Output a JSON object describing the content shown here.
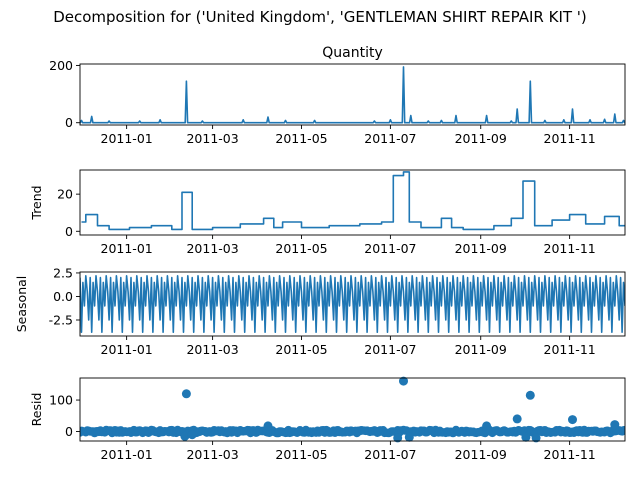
{
  "chart_data": {
    "suptitle": "Decomposition for ('United Kingdom', 'GENTLEMAN SHIRT REPAIR KIT ')",
    "x_start": "2011-12-01",
    "x_end": "2012-12-09",
    "x_ticks": [
      {
        "date": "2011-01-01",
        "label": "2011-01"
      },
      {
        "date": "2011-03-01",
        "label": "2011-03"
      },
      {
        "date": "2011-05-01",
        "label": "2011-05"
      },
      {
        "date": "2011-07-01",
        "label": "2011-07"
      },
      {
        "date": "2011-09-01",
        "label": "2011-09"
      },
      {
        "date": "2011-11-01",
        "label": "2011-11"
      }
    ],
    "panels": [
      {
        "key": "observed",
        "type": "line",
        "title": "Quantity",
        "ylabel": "",
        "ylim": [
          -8,
          205
        ],
        "yticks": [
          0,
          200
        ],
        "spikes": [
          {
            "date": "2010-12-01",
            "value": 8
          },
          {
            "date": "2010-12-08",
            "value": 22
          },
          {
            "date": "2010-12-20",
            "value": 6
          },
          {
            "date": "2011-01-10",
            "value": 6
          },
          {
            "date": "2011-01-24",
            "value": 10
          },
          {
            "date": "2011-02-11",
            "value": 145
          },
          {
            "date": "2011-02-22",
            "value": 6
          },
          {
            "date": "2011-03-22",
            "value": 10
          },
          {
            "date": "2011-04-08",
            "value": 20
          },
          {
            "date": "2011-04-20",
            "value": 8
          },
          {
            "date": "2011-05-10",
            "value": 8
          },
          {
            "date": "2011-06-20",
            "value": 6
          },
          {
            "date": "2011-07-01",
            "value": 10
          },
          {
            "date": "2011-07-10",
            "value": 195
          },
          {
            "date": "2011-07-15",
            "value": 25
          },
          {
            "date": "2011-07-27",
            "value": 6
          },
          {
            "date": "2011-08-05",
            "value": 8
          },
          {
            "date": "2011-08-15",
            "value": 25
          },
          {
            "date": "2011-09-05",
            "value": 25
          },
          {
            "date": "2011-09-22",
            "value": 6
          },
          {
            "date": "2011-09-26",
            "value": 48
          },
          {
            "date": "2011-10-05",
            "value": 145
          },
          {
            "date": "2011-10-15",
            "value": 8
          },
          {
            "date": "2011-10-28",
            "value": 10
          },
          {
            "date": "2011-11-03",
            "value": 48
          },
          {
            "date": "2011-11-15",
            "value": 10
          },
          {
            "date": "2011-11-25",
            "value": 12
          },
          {
            "date": "2011-12-02",
            "value": 30
          },
          {
            "date": "2011-12-08",
            "value": 8
          }
        ]
      },
      {
        "key": "trend",
        "type": "line",
        "title": "",
        "ylabel": "Trend",
        "ylim": [
          -2,
          33
        ],
        "yticks": [
          0,
          20
        ],
        "steps": [
          {
            "start": "2010-12-01",
            "end": "2010-12-04",
            "value": 5
          },
          {
            "start": "2010-12-04",
            "end": "2010-12-12",
            "value": 9
          },
          {
            "start": "2010-12-12",
            "end": "2010-12-20",
            "value": 3
          },
          {
            "start": "2010-12-20",
            "end": "2011-01-03",
            "value": 1
          },
          {
            "start": "2011-01-03",
            "end": "2011-01-18",
            "value": 2
          },
          {
            "start": "2011-01-18",
            "end": "2011-02-01",
            "value": 3
          },
          {
            "start": "2011-02-01",
            "end": "2011-02-08",
            "value": 1
          },
          {
            "start": "2011-02-08",
            "end": "2011-02-15",
            "value": 21
          },
          {
            "start": "2011-02-15",
            "end": "2011-03-01",
            "value": 1
          },
          {
            "start": "2011-03-01",
            "end": "2011-03-20",
            "value": 2
          },
          {
            "start": "2011-03-20",
            "end": "2011-04-05",
            "value": 4
          },
          {
            "start": "2011-04-05",
            "end": "2011-04-12",
            "value": 7
          },
          {
            "start": "2011-04-12",
            "end": "2011-04-18",
            "value": 2
          },
          {
            "start": "2011-04-18",
            "end": "2011-05-01",
            "value": 5
          },
          {
            "start": "2011-05-01",
            "end": "2011-05-20",
            "value": 2
          },
          {
            "start": "2011-05-20",
            "end": "2011-06-10",
            "value": 3
          },
          {
            "start": "2011-06-10",
            "end": "2011-06-25",
            "value": 4
          },
          {
            "start": "2011-06-25",
            "end": "2011-07-03",
            "value": 5
          },
          {
            "start": "2011-07-03",
            "end": "2011-07-10",
            "value": 30
          },
          {
            "start": "2011-07-10",
            "end": "2011-07-14",
            "value": 32
          },
          {
            "start": "2011-07-14",
            "end": "2011-07-22",
            "value": 5
          },
          {
            "start": "2011-07-22",
            "end": "2011-08-05",
            "value": 2
          },
          {
            "start": "2011-08-05",
            "end": "2011-08-12",
            "value": 7
          },
          {
            "start": "2011-08-12",
            "end": "2011-08-20",
            "value": 2
          },
          {
            "start": "2011-08-20",
            "end": "2011-09-10",
            "value": 1
          },
          {
            "start": "2011-09-10",
            "end": "2011-09-22",
            "value": 3
          },
          {
            "start": "2011-09-22",
            "end": "2011-09-30",
            "value": 7
          },
          {
            "start": "2011-09-30",
            "end": "2011-10-08",
            "value": 27
          },
          {
            "start": "2011-10-08",
            "end": "2011-10-20",
            "value": 3
          },
          {
            "start": "2011-10-20",
            "end": "2011-11-01",
            "value": 6
          },
          {
            "start": "2011-11-01",
            "end": "2011-11-12",
            "value": 9
          },
          {
            "start": "2011-11-12",
            "end": "2011-11-25",
            "value": 4
          },
          {
            "start": "2011-11-25",
            "end": "2011-12-05",
            "value": 8
          },
          {
            "start": "2011-12-05",
            "end": "2011-12-09",
            "value": 3
          }
        ]
      },
      {
        "key": "seasonal",
        "type": "line",
        "title": "",
        "ylabel": "Seasonal",
        "ylim": [
          -4.2,
          2.6
        ],
        "yticks": [
          2.5,
          0.0,
          -2.5
        ],
        "period_days": 7,
        "weekly_pattern": [
          2.0,
          -3.8,
          1.5,
          -1.0,
          2.2,
          0.5,
          -2.5
        ]
      },
      {
        "key": "resid",
        "type": "scatter",
        "title": "",
        "ylabel": "Resid",
        "ylim": [
          -30,
          170
        ],
        "yticks": [
          0,
          100
        ],
        "outliers": [
          {
            "date": "2011-02-11",
            "value": 120
          },
          {
            "date": "2011-02-10",
            "value": -15
          },
          {
            "date": "2011-02-15",
            "value": -10
          },
          {
            "date": "2011-04-08",
            "value": 18
          },
          {
            "date": "2011-07-06",
            "value": -20
          },
          {
            "date": "2011-07-10",
            "value": 160
          },
          {
            "date": "2011-07-14",
            "value": -18
          },
          {
            "date": "2011-09-05",
            "value": 18
          },
          {
            "date": "2011-09-26",
            "value": 40
          },
          {
            "date": "2011-10-02",
            "value": -18
          },
          {
            "date": "2011-10-05",
            "value": 115
          },
          {
            "date": "2011-10-09",
            "value": -20
          },
          {
            "date": "2011-11-03",
            "value": 38
          },
          {
            "date": "2011-12-02",
            "value": 22
          }
        ]
      }
    ]
  }
}
